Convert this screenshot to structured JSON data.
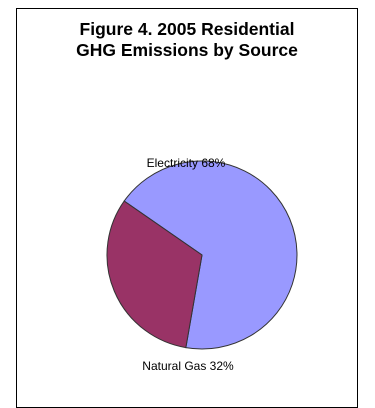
{
  "chart_data": {
    "type": "pie",
    "title_lines": [
      "Figure 4.  2005 Residential",
      "GHG Emissions by Source"
    ],
    "slices": [
      {
        "label": "Electricity 68%",
        "category": "Electricity",
        "value": 68,
        "color": "#9999ff"
      },
      {
        "label": "Natural Gas 32%",
        "category": "Natural Gas",
        "value": 32,
        "color": "#993366"
      }
    ],
    "start_angle_deg": -145,
    "outline_color": "#333333",
    "legend": "none"
  }
}
